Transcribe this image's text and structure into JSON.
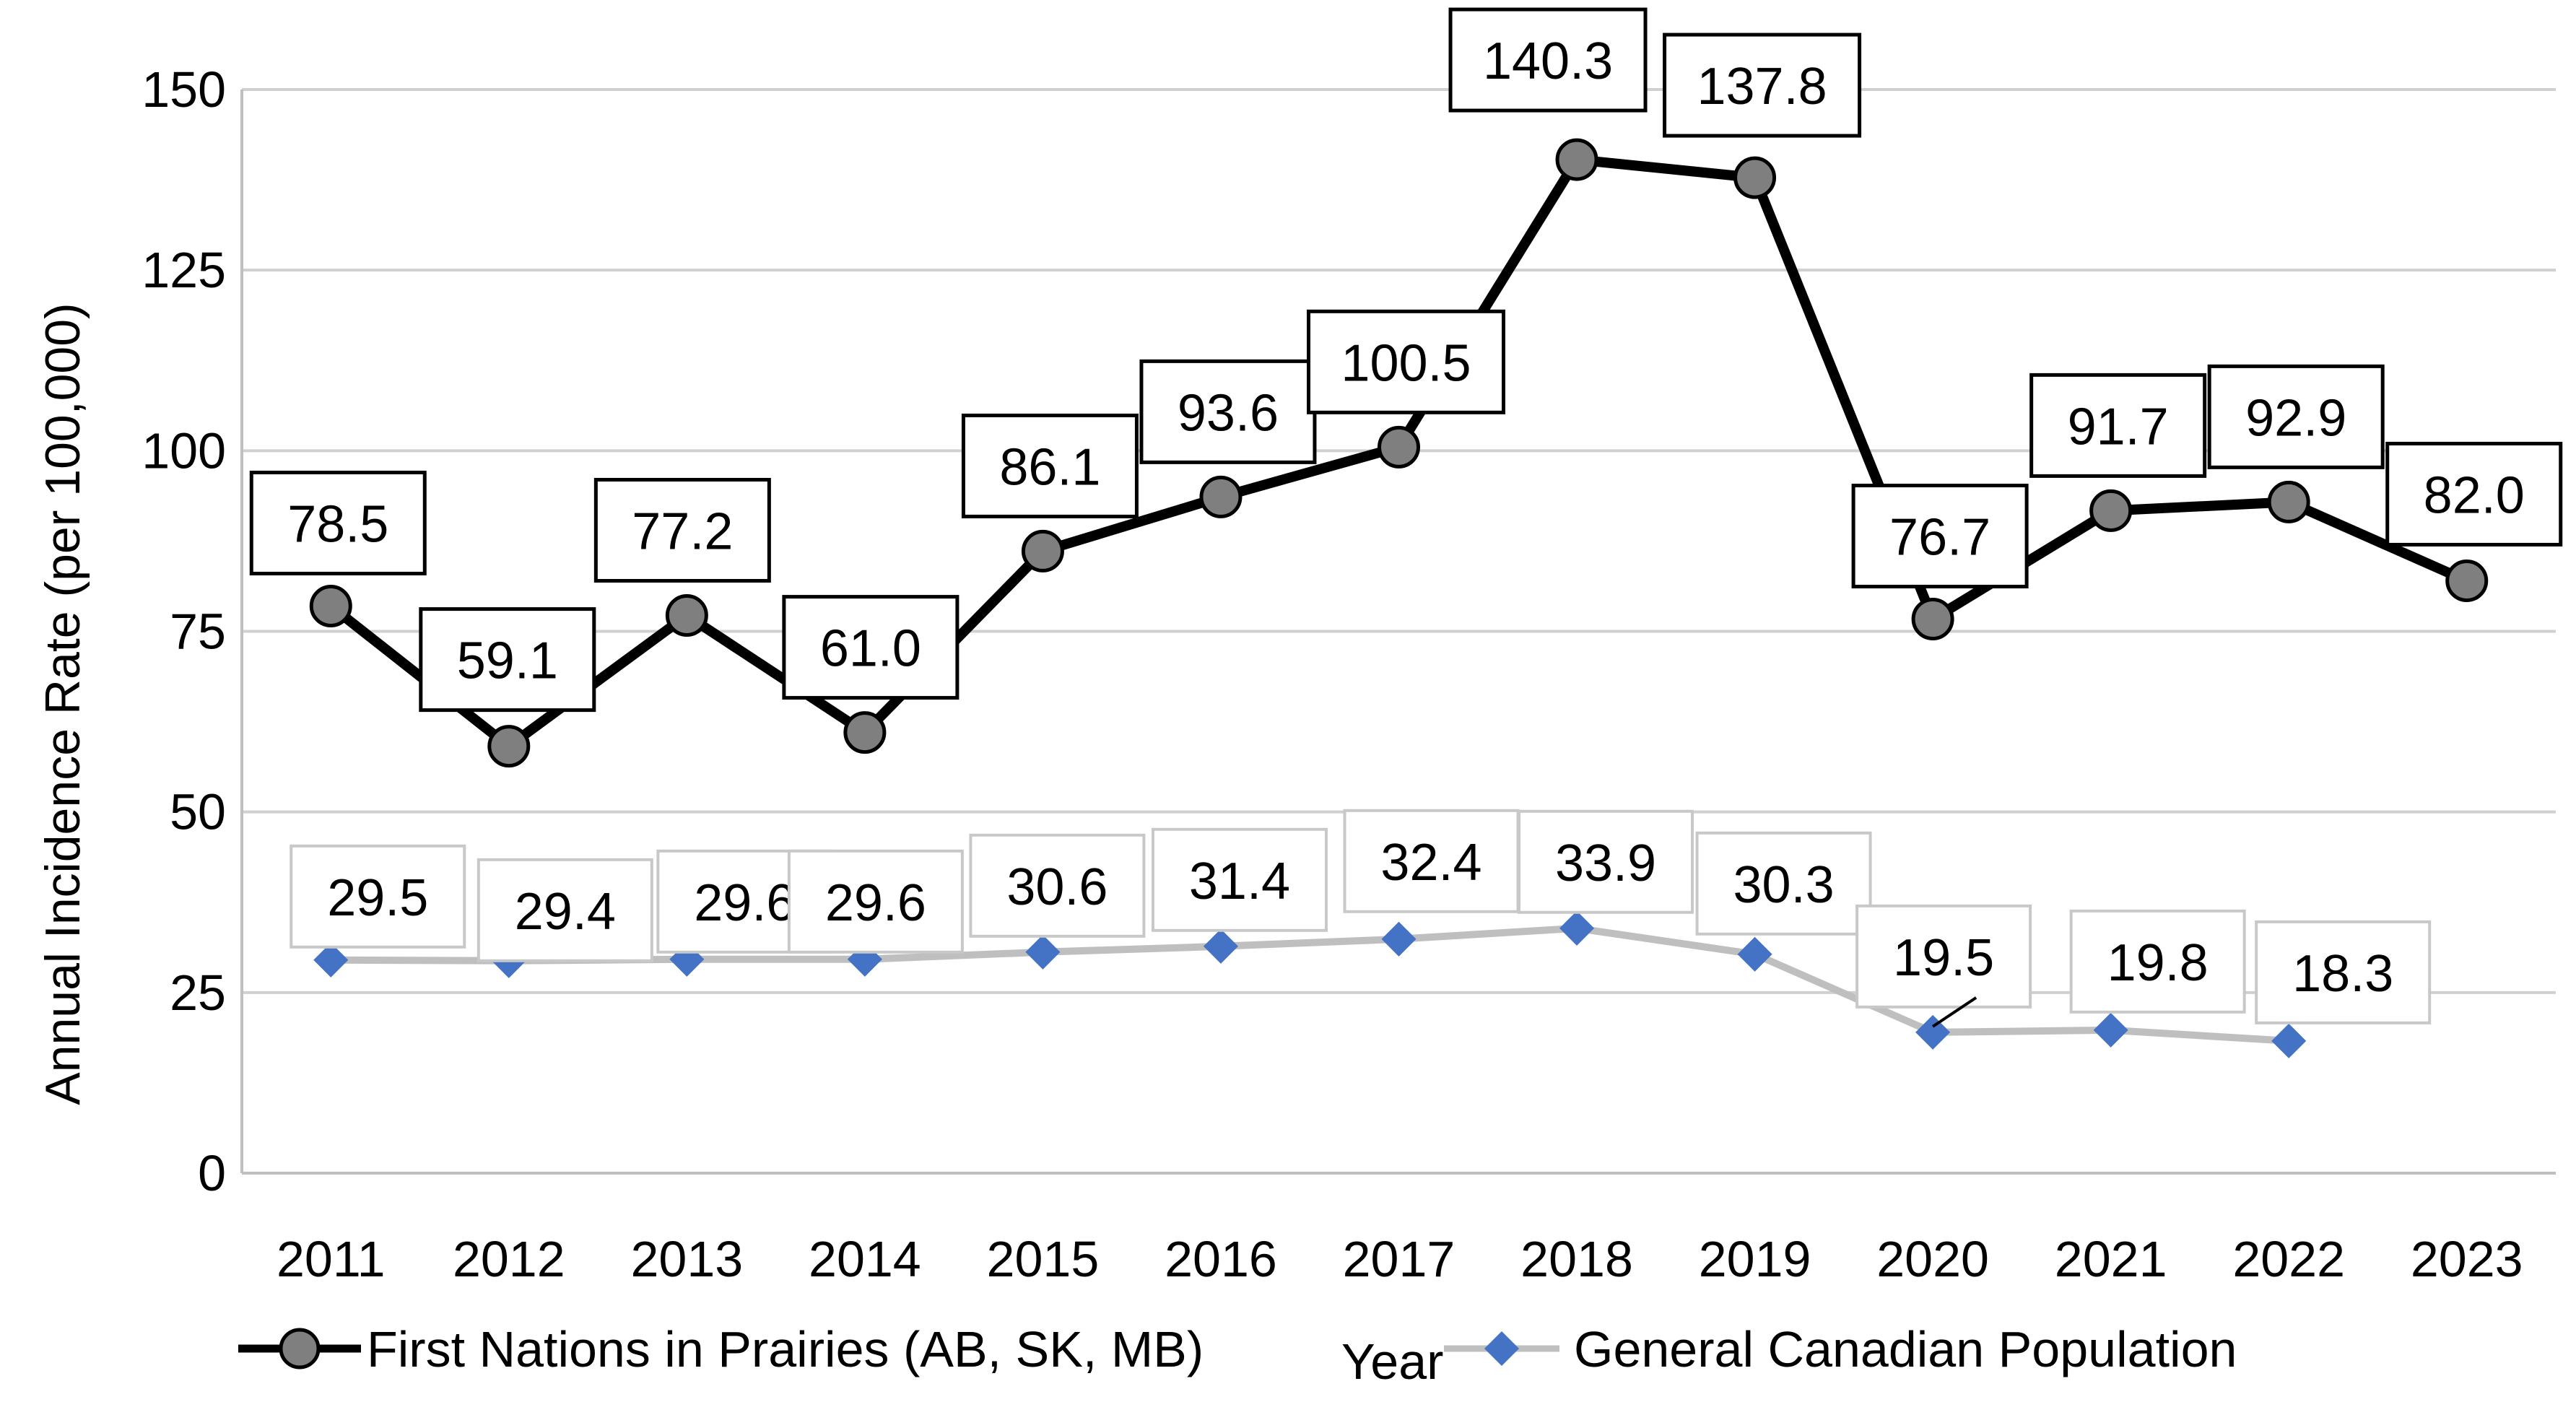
{
  "chart_data": {
    "type": "line",
    "title": "",
    "xlabel": "Year",
    "ylabel": "Annual Incidence Rate (per 100,000)",
    "ylim": [
      0,
      150
    ],
    "yticks": [
      0,
      25,
      50,
      75,
      100,
      125,
      150
    ],
    "grid": true,
    "legend_position": "bottom",
    "categories": [
      "2011",
      "2012",
      "2013",
      "2014",
      "2015",
      "2016",
      "2017",
      "2018",
      "2019",
      "2020",
      "2021",
      "2022",
      "2023"
    ],
    "series": [
      {
        "name": "First Nations in Prairies (AB, SK, MB)",
        "color": "#000000",
        "marker_color": "#7f7f7f",
        "marker": "circle",
        "values": [
          78.5,
          59.1,
          77.2,
          61.0,
          86.1,
          93.6,
          100.5,
          140.3,
          137.8,
          76.7,
          91.7,
          92.9,
          82.0
        ],
        "labels": [
          "78.5",
          "59.1",
          "77.2",
          "61.0",
          "86.1",
          "93.6",
          "100.5",
          "140.3",
          "137.8",
          "76.7",
          "91.7",
          "92.9",
          "82.0"
        ]
      },
      {
        "name": "General Canadian Population",
        "color": "#bfbfbf",
        "marker_color": "#4472c4",
        "marker": "diamond",
        "values": [
          29.5,
          29.4,
          29.6,
          29.6,
          30.6,
          31.4,
          32.4,
          33.9,
          30.3,
          19.5,
          19.8,
          18.3,
          null
        ],
        "labels": [
          "29.5",
          "29.4",
          "29.6",
          "29.6",
          "30.6",
          "31.4",
          "32.4",
          "33.9",
          "30.3",
          "19.5",
          "19.8",
          "18.3",
          null
        ]
      }
    ]
  }
}
